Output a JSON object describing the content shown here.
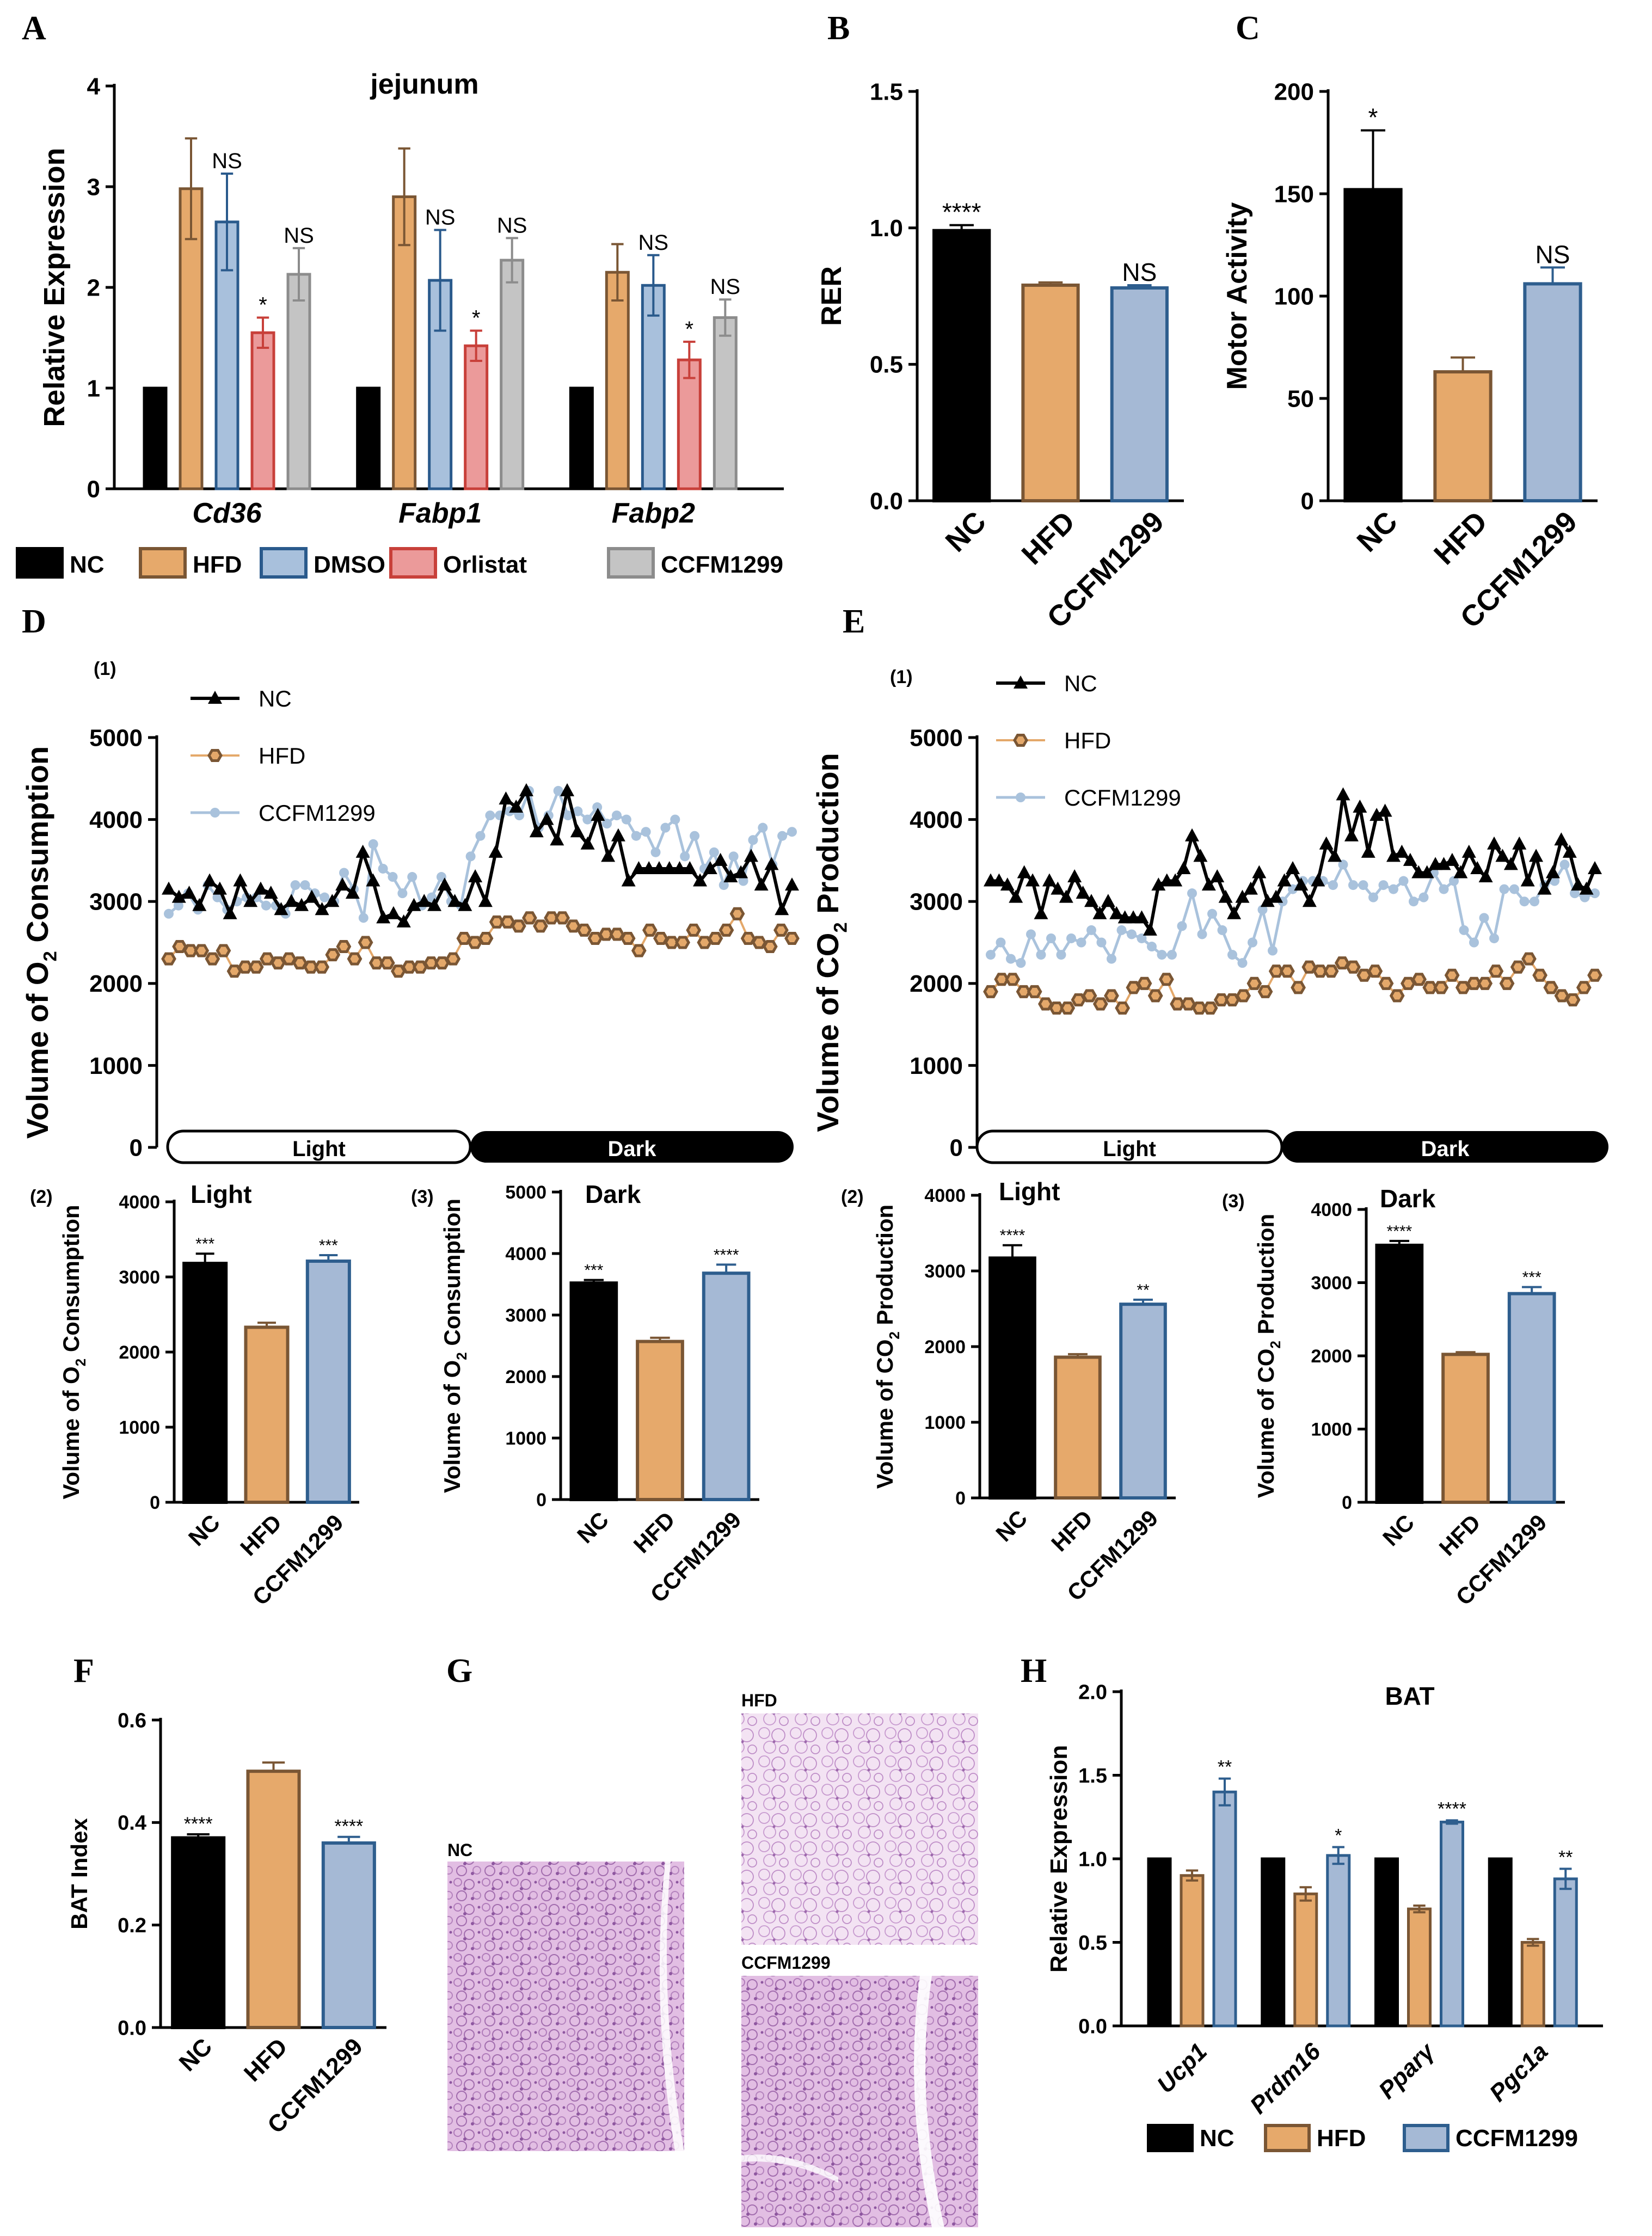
{
  "colors": {
    "NC": "#000000",
    "HFD": "#E6A96B",
    "HFD_edge": "#7A5634",
    "DMSO": "#A8C0DC",
    "DMSO_edge": "#2A5A8C",
    "Orlistat": "#EB9A9A",
    "Orlistat_edge": "#C8403A",
    "CCFM1299": "#A5B9D5",
    "CCFM1299_edge": "#2E5E8E",
    "CCFM1299_A": "#C4C4C4",
    "CCFM1299_A_edge": "#8C8C8C",
    "hfd_line": "#E4A86A",
    "hfd_marker": "#7A5634",
    "ccfm_line": "#A9C2DC",
    "tissue": "#D6A9D8"
  },
  "chart_data": [
    {
      "panel": "A",
      "type": "bar",
      "title": "jejunum",
      "ylabel": "Relative Expression",
      "ylim": [
        0,
        4
      ],
      "yticks": [
        "0",
        "1",
        "2",
        "3",
        "4"
      ],
      "categories": [
        "Cd36",
        "Fabp1",
        "Fabp2"
      ],
      "series": [
        {
          "name": "NC",
          "values": [
            1,
            1,
            1
          ],
          "errors": [
            0,
            0,
            0
          ],
          "labels": [
            "",
            "",
            ""
          ]
        },
        {
          "name": "HFD",
          "values": [
            2.98,
            2.9,
            2.15
          ],
          "errors": [
            0.5,
            0.48,
            0.28
          ],
          "labels": [
            "",
            "",
            ""
          ]
        },
        {
          "name": "DMSO",
          "values": [
            2.65,
            2.07,
            2.02
          ],
          "errors": [
            0.48,
            0.5,
            0.3
          ],
          "labels": [
            "NS",
            "NS",
            "NS"
          ]
        },
        {
          "name": "Orlistat",
          "values": [
            1.55,
            1.42,
            1.28
          ],
          "errors": [
            0.15,
            0.15,
            0.18
          ],
          "labels": [
            "*",
            "*",
            "*"
          ]
        },
        {
          "name": "CCFM1299",
          "values": [
            2.13,
            2.27,
            1.7
          ],
          "errors": [
            0.26,
            0.22,
            0.18
          ],
          "labels": [
            "NS",
            "NS",
            "NS"
          ]
        }
      ],
      "legend": [
        "NC",
        "HFD",
        "DMSO",
        "Orlistat",
        "CCFM1299"
      ]
    },
    {
      "panel": "B",
      "type": "bar",
      "ylabel": "RER",
      "ylim": [
        0,
        1.5
      ],
      "yticks": [
        "0.0",
        "0.5",
        "1.0",
        "1.5"
      ],
      "categories": [
        "NC",
        "HFD",
        "CCFM1299"
      ],
      "values": [
        0.99,
        0.79,
        0.78
      ],
      "errors": [
        0.02,
        0.01,
        0.01
      ],
      "labels": [
        "****",
        "",
        "NS"
      ]
    },
    {
      "panel": "C",
      "type": "bar",
      "ylabel": "Motor Activity",
      "ylim": [
        0,
        200
      ],
      "yticks": [
        "0",
        "50",
        "100",
        "150",
        "200"
      ],
      "categories": [
        "NC",
        "HFD",
        "CCFM1299"
      ],
      "values": [
        152,
        63,
        106
      ],
      "errors": [
        29,
        7,
        8
      ],
      "labels": [
        "*",
        "",
        "NS"
      ]
    },
    {
      "panel": "D(1)",
      "sub": "(1)",
      "type": "line",
      "ylabel": "Volume of O2 Consumption",
      "ylim": [
        0,
        5000
      ],
      "yticks": [
        "0",
        "1000",
        "2000",
        "3000",
        "4000",
        "5000"
      ],
      "phases": [
        "Light",
        "Dark"
      ],
      "series": [
        {
          "name": "NC",
          "values": [
            3150,
            3050,
            3100,
            2950,
            3250,
            3150,
            2850,
            3250,
            3000,
            3150,
            3100,
            2900,
            3000,
            2950,
            3050,
            2900,
            3000,
            3200,
            3100,
            3600,
            3250,
            2800,
            2850,
            2750,
            2950,
            3000,
            2950,
            3200,
            3000,
            2950,
            3300,
            3000,
            3600,
            4250,
            4150,
            4350,
            3850,
            4000,
            3750,
            4350,
            3850,
            3700,
            4050,
            3550,
            3800,
            3250,
            3400,
            3400,
            3400,
            3400,
            3400,
            3400,
            3250,
            3400,
            3500,
            3300,
            3350,
            3550,
            3200,
            3450,
            2900,
            3200
          ]
        },
        {
          "name": "HFD",
          "values": [
            2300,
            2450,
            2400,
            2400,
            2300,
            2400,
            2150,
            2200,
            2200,
            2300,
            2250,
            2300,
            2250,
            2200,
            2200,
            2350,
            2450,
            2300,
            2500,
            2250,
            2250,
            2150,
            2200,
            2200,
            2250,
            2250,
            2300,
            2550,
            2500,
            2550,
            2750,
            2750,
            2700,
            2800,
            2700,
            2800,
            2800,
            2700,
            2650,
            2550,
            2600,
            2600,
            2550,
            2400,
            2650,
            2550,
            2500,
            2500,
            2650,
            2500,
            2550,
            2650,
            2850,
            2550,
            2500,
            2450,
            2650,
            2550
          ]
        },
        {
          "name": "CCFM1299",
          "values": [
            2850,
            2950,
            3100,
            2900,
            3200,
            3050,
            2900,
            3000,
            3050,
            3050,
            2950,
            2950,
            2850,
            3200,
            3200,
            3100,
            3050,
            3000,
            3350,
            3150,
            2800,
            3700,
            3400,
            3300,
            3100,
            3300,
            2950,
            3050,
            3300,
            3000,
            2950,
            3550,
            3800,
            4050,
            4050,
            4100,
            4050,
            4350,
            3900,
            4050,
            4350,
            4050,
            4100,
            4000,
            4150,
            3950,
            4050,
            4000,
            3800,
            3850,
            3600,
            3900,
            4000,
            3550,
            3800,
            3400,
            3600,
            3200,
            3550,
            3250,
            3750,
            3900,
            3450,
            3800,
            3850
          ]
        }
      ]
    },
    {
      "panel": "D(2)",
      "sub": "(2)",
      "type": "bar",
      "title": "Light",
      "ylabel": "Volume of O2 Consumption",
      "ylim": [
        0,
        4000
      ],
      "yticks": [
        "0",
        "1000",
        "2000",
        "3000",
        "4000"
      ],
      "categories": [
        "NC",
        "HFD",
        "CCFM1299"
      ],
      "values": [
        3180,
        2330,
        3210
      ],
      "errors": [
        130,
        60,
        80
      ],
      "labels": [
        "***",
        "",
        "***"
      ]
    },
    {
      "panel": "D(3)",
      "sub": "(3)",
      "type": "bar",
      "title": "Dark",
      "ylabel": "Volume of O2 Consumption",
      "ylim": [
        0,
        5000
      ],
      "yticks": [
        "0",
        "1000",
        "2000",
        "3000",
        "4000",
        "5000"
      ],
      "categories": [
        "NC",
        "HFD",
        "CCFM1299"
      ],
      "values": [
        3520,
        2570,
        3680
      ],
      "errors": [
        50,
        60,
        140
      ],
      "labels": [
        "***",
        "",
        "****"
      ]
    },
    {
      "panel": "E(1)",
      "sub": "(1)",
      "type": "line",
      "ylabel": "Volume of CO2 Production",
      "ylim": [
        0,
        5000
      ],
      "yticks": [
        "0",
        "1000",
        "2000",
        "3000",
        "4000",
        "5000"
      ],
      "phases": [
        "Light",
        "Dark"
      ],
      "series": [
        {
          "name": "NC",
          "values": [
            3250,
            3250,
            3200,
            3050,
            3350,
            3250,
            2850,
            3250,
            3150,
            3050,
            3300,
            3100,
            3000,
            2850,
            3000,
            2850,
            2800,
            2800,
            2800,
            2650,
            3200,
            3250,
            3250,
            3400,
            3800,
            3550,
            3200,
            3300,
            3050,
            2850,
            3050,
            3150,
            3350,
            3000,
            3050,
            3250,
            3400,
            3200,
            3000,
            3250,
            3700,
            3550,
            4300,
            3800,
            4150,
            3600,
            4050,
            4100,
            3550,
            3600,
            3500,
            3350,
            3350,
            3450,
            3450,
            3500,
            3350,
            3600,
            3400,
            3300,
            3700,
            3550,
            3450,
            3700,
            3250,
            3550,
            3150,
            3350,
            3750,
            3600,
            3200,
            3150,
            3400
          ]
        },
        {
          "name": "HFD",
          "values": [
            1900,
            2050,
            2050,
            1900,
            1900,
            1750,
            1700,
            1700,
            1800,
            1850,
            1750,
            1850,
            1700,
            1950,
            2000,
            1850,
            2050,
            1750,
            1750,
            1700,
            1700,
            1800,
            1800,
            1850,
            2000,
            1900,
            2150,
            2150,
            1950,
            2200,
            2150,
            2150,
            2250,
            2200,
            2100,
            2150,
            2000,
            1850,
            2000,
            2050,
            1950,
            1950,
            2100,
            1950,
            2000,
            2000,
            2150,
            2000,
            2200,
            2300,
            2100,
            1950,
            1850,
            1800,
            1950,
            2100
          ]
        },
        {
          "name": "CCFM1299",
          "values": [
            2350,
            2500,
            2300,
            2250,
            2600,
            2350,
            2550,
            2350,
            2550,
            2500,
            2650,
            2500,
            2300,
            2650,
            2600,
            2550,
            2450,
            2350,
            2350,
            2700,
            3100,
            2600,
            2850,
            2650,
            2350,
            2250,
            2500,
            2900,
            2400,
            3000,
            3150,
            3250,
            3250,
            3250,
            3200,
            3450,
            3200,
            3200,
            3050,
            3200,
            3150,
            3250,
            3000,
            3050,
            3350,
            3150,
            3250,
            2650,
            2500,
            2800,
            2550,
            3150,
            3150,
            3000,
            3000,
            3200,
            3250,
            3450,
            3100,
            3050,
            3100
          ]
        }
      ]
    },
    {
      "panel": "E(2)",
      "sub": "(2)",
      "type": "bar",
      "title": "Light",
      "ylabel": "Volume of CO2 Production",
      "ylim": [
        0,
        4000
      ],
      "yticks": [
        "0",
        "1000",
        "2000",
        "3000",
        "4000"
      ],
      "categories": [
        "NC",
        "HFD",
        "CCFM1299"
      ],
      "values": [
        3170,
        1860,
        2560
      ],
      "errors": [
        170,
        40,
        60
      ],
      "labels": [
        "****",
        "",
        "**"
      ]
    },
    {
      "panel": "E(3)",
      "sub": "(3)",
      "type": "bar",
      "title": "Dark",
      "ylabel": "Volume of CO2 Production",
      "ylim": [
        0,
        4000
      ],
      "yticks": [
        "0",
        "1000",
        "2000",
        "3000",
        "4000"
      ],
      "categories": [
        "NC",
        "HFD",
        "CCFM1299"
      ],
      "values": [
        3510,
        2020,
        2850
      ],
      "errors": [
        60,
        30,
        90
      ],
      "labels": [
        "****",
        "",
        "***"
      ]
    },
    {
      "panel": "F",
      "type": "bar",
      "ylabel": "BAT Index",
      "ylim": [
        0,
        0.6
      ],
      "yticks": [
        "0.0",
        "0.2",
        "0.4",
        "0.6"
      ],
      "categories": [
        "NC",
        "HFD",
        "CCFM1299"
      ],
      "values": [
        0.37,
        0.5,
        0.36
      ],
      "errors": [
        0.007,
        0.017,
        0.012
      ],
      "labels": [
        "****",
        "",
        "****"
      ]
    },
    {
      "panel": "H",
      "type": "bar",
      "title": "BAT",
      "ylabel": "Relative Expression",
      "ylim": [
        0,
        2
      ],
      "yticks": [
        "0.0",
        "0.5",
        "1.0",
        "1.5",
        "2.0"
      ],
      "categories": [
        "Ucp1",
        "Prdm16",
        "Pparγ",
        "Pgc1a"
      ],
      "series": [
        {
          "name": "NC",
          "values": [
            1,
            1,
            1,
            1
          ],
          "errors": [
            0,
            0,
            0,
            0
          ],
          "labels": [
            "",
            "",
            "",
            ""
          ]
        },
        {
          "name": "HFD",
          "values": [
            0.9,
            0.79,
            0.7,
            0.5
          ],
          "errors": [
            0.03,
            0.04,
            0.02,
            0.02
          ],
          "labels": [
            "",
            "",
            "",
            ""
          ]
        },
        {
          "name": "CCFM1299",
          "values": [
            1.4,
            1.02,
            1.22,
            0.88
          ],
          "errors": [
            0.08,
            0.05,
            0.01,
            0.06
          ],
          "labels": [
            "**",
            "*",
            "****",
            "**"
          ]
        }
      ],
      "legend": [
        "NC",
        "HFD",
        "CCFM1299"
      ]
    }
  ],
  "panel_labels": {
    "A": "A",
    "B": "B",
    "C": "C",
    "D": "D",
    "E": "E",
    "F": "F",
    "G": "G",
    "H": "H"
  },
  "histology": {
    "nc": "NC",
    "hfd": "HFD",
    "ccfm": "CCFM1299"
  }
}
